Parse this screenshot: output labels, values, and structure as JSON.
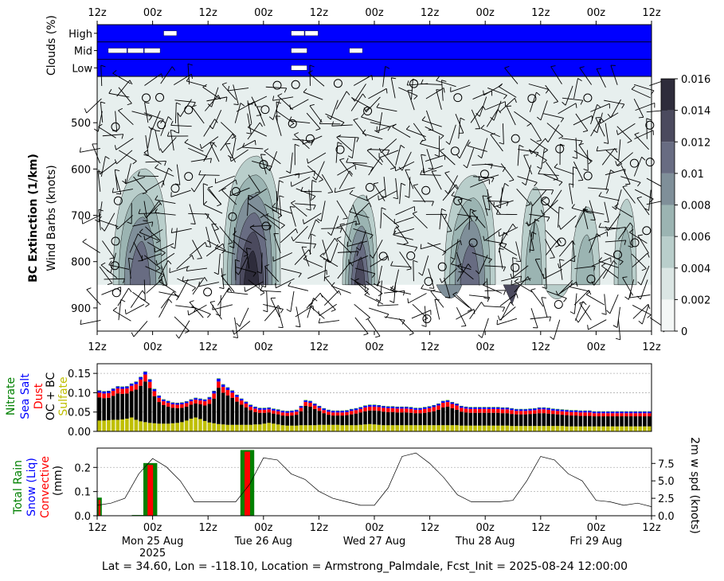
{
  "footer": "Lat = 34.60, Lon = -118.10, Location = Armstrong_Palmdale, Fcst_Init = 2025-08-24 12:00:00",
  "time_ticks": [
    "12z",
    "00z",
    "12z",
    "00z",
    "12z",
    "00z",
    "12z",
    "00z",
    "12z",
    "00z",
    "12z"
  ],
  "day_labels": [
    "Mon 25 Aug",
    "Tue 26 Aug",
    "Wed 27 Aug",
    "Thu 28 Aug",
    "Fri 29 Aug"
  ],
  "year_label": "2025",
  "clouds": {
    "ylabel": "Clouds (%)",
    "rows": [
      "High",
      "Mid",
      "Low"
    ],
    "fill_color": "#0000ff",
    "segments_high": [
      [
        1.2,
        1.45
      ],
      [
        3.5,
        3.75
      ],
      [
        3.75,
        4.0
      ]
    ],
    "segments_mid": [
      [
        0.2,
        0.55
      ],
      [
        0.55,
        0.85
      ],
      [
        0.85,
        1.15
      ],
      [
        3.5,
        3.8
      ],
      [
        4.55,
        4.8
      ]
    ],
    "segments_low": [
      [
        3.5,
        3.8
      ]
    ]
  },
  "main": {
    "ylabel_bold": "BC Extinction (1/km)",
    "ylabel": "Wind Barbs (knots)",
    "y_ticks": [
      "500",
      "600",
      "700",
      "800",
      "900"
    ],
    "ylim": [
      950,
      400
    ],
    "colorbar_ticks": [
      "0",
      "0.002",
      "0.004",
      "0.006",
      "0.008",
      "0.01",
      "0.012",
      "0.014",
      "0.016"
    ],
    "colorbar_colors": [
      "#f4f7f6",
      "#dbe6e4",
      "#b9cecb",
      "#9bb4b2",
      "#7f8f99",
      "#686c82",
      "#4b4a5e",
      "#2e2c3b",
      "#141414"
    ],
    "background_color": "#e7efee"
  },
  "chart_data": [
    {
      "type": "bar",
      "stacked": true,
      "ylabels": [
        "Nitrate",
        "Sea Salt",
        "Dust",
        "OC + BC",
        "Sulfate"
      ],
      "ylabel_colors": [
        "#008000",
        "#0000ff",
        "#ff0000",
        "#000000",
        "#bfbf00"
      ],
      "y_ticks": [
        "0.00",
        "0.05",
        "0.10",
        "0.15"
      ],
      "ylim": [
        0,
        0.175
      ],
      "grid": true,
      "x_hours_step": 3,
      "series": [
        {
          "name": "Sulfate",
          "color": "#bfbf00",
          "values": [
            0.028,
            0.028,
            0.029,
            0.03,
            0.03,
            0.031,
            0.033,
            0.036,
            0.03,
            0.026,
            0.024,
            0.022,
            0.021,
            0.02,
            0.02,
            0.02,
            0.021,
            0.022,
            0.024,
            0.028,
            0.033,
            0.036,
            0.032,
            0.027,
            0.023,
            0.021,
            0.019,
            0.018,
            0.017,
            0.017,
            0.017,
            0.017,
            0.017,
            0.017,
            0.018,
            0.018,
            0.02,
            0.022,
            0.02,
            0.018,
            0.016,
            0.015,
            0.015,
            0.015,
            0.016,
            0.016,
            0.016,
            0.016,
            0.017,
            0.017,
            0.017,
            0.017,
            0.017,
            0.016,
            0.016,
            0.016,
            0.016,
            0.017,
            0.018,
            0.019,
            0.018,
            0.017,
            0.016,
            0.016,
            0.016,
            0.016,
            0.016,
            0.016,
            0.016,
            0.016,
            0.016,
            0.016,
            0.016,
            0.016,
            0.016,
            0.016,
            0.016,
            0.016,
            0.016,
            0.015,
            0.015,
            0.015,
            0.015,
            0.015,
            0.015,
            0.015,
            0.015,
            0.015,
            0.015,
            0.015,
            0.014,
            0.014,
            0.014,
            0.014,
            0.014,
            0.014,
            0.014,
            0.014,
            0.014,
            0.014,
            0.014,
            0.014,
            0.013,
            0.013,
            0.013,
            0.013,
            0.013,
            0.013,
            0.013,
            0.013,
            0.013,
            0.013,
            0.013,
            0.013,
            0.013,
            0.013,
            0.013,
            0.013,
            0.013,
            0.013,
            0.013
          ]
        },
        {
          "name": "OC + BC",
          "color": "#000000",
          "values": [
            0.06,
            0.058,
            0.058,
            0.062,
            0.068,
            0.066,
            0.065,
            0.068,
            0.078,
            0.092,
            0.105,
            0.09,
            0.07,
            0.056,
            0.048,
            0.044,
            0.04,
            0.038,
            0.037,
            0.036,
            0.036,
            0.036,
            0.038,
            0.04,
            0.048,
            0.064,
            0.094,
            0.082,
            0.076,
            0.07,
            0.06,
            0.052,
            0.045,
            0.038,
            0.032,
            0.03,
            0.028,
            0.027,
            0.026,
            0.026,
            0.025,
            0.025,
            0.026,
            0.028,
            0.036,
            0.05,
            0.048,
            0.042,
            0.036,
            0.03,
            0.026,
            0.024,
            0.024,
            0.025,
            0.026,
            0.028,
            0.03,
            0.032,
            0.034,
            0.035,
            0.036,
            0.036,
            0.035,
            0.034,
            0.034,
            0.033,
            0.033,
            0.033,
            0.032,
            0.031,
            0.031,
            0.032,
            0.034,
            0.036,
            0.04,
            0.046,
            0.048,
            0.044,
            0.04,
            0.036,
            0.034,
            0.033,
            0.033,
            0.033,
            0.033,
            0.033,
            0.033,
            0.033,
            0.032,
            0.032,
            0.031,
            0.03,
            0.03,
            0.03,
            0.031,
            0.032,
            0.033,
            0.033,
            0.032,
            0.031,
            0.03,
            0.029,
            0.029,
            0.028,
            0.028,
            0.027,
            0.027,
            0.027,
            0.026,
            0.026,
            0.026,
            0.026,
            0.026,
            0.026,
            0.026,
            0.026,
            0.026,
            0.026,
            0.026,
            0.026,
            0.026
          ]
        },
        {
          "name": "Dust",
          "color": "#ff0000",
          "values": [
            0.012,
            0.012,
            0.012,
            0.013,
            0.013,
            0.013,
            0.013,
            0.014,
            0.014,
            0.016,
            0.018,
            0.016,
            0.013,
            0.011,
            0.01,
            0.01,
            0.009,
            0.009,
            0.009,
            0.009,
            0.009,
            0.01,
            0.01,
            0.011,
            0.012,
            0.013,
            0.016,
            0.015,
            0.014,
            0.013,
            0.012,
            0.011,
            0.01,
            0.009,
            0.009,
            0.008,
            0.008,
            0.008,
            0.008,
            0.008,
            0.008,
            0.008,
            0.008,
            0.008,
            0.009,
            0.01,
            0.01,
            0.009,
            0.008,
            0.008,
            0.008,
            0.008,
            0.008,
            0.008,
            0.008,
            0.009,
            0.009,
            0.009,
            0.01,
            0.01,
            0.01,
            0.01,
            0.01,
            0.01,
            0.01,
            0.01,
            0.01,
            0.01,
            0.01,
            0.009,
            0.009,
            0.01,
            0.01,
            0.011,
            0.011,
            0.012,
            0.012,
            0.011,
            0.011,
            0.01,
            0.01,
            0.01,
            0.01,
            0.01,
            0.01,
            0.01,
            0.01,
            0.01,
            0.01,
            0.01,
            0.01,
            0.009,
            0.009,
            0.009,
            0.009,
            0.009,
            0.01,
            0.01,
            0.01,
            0.009,
            0.009,
            0.009,
            0.009,
            0.009,
            0.009,
            0.009,
            0.009,
            0.009,
            0.008,
            0.008,
            0.008,
            0.008,
            0.008,
            0.008,
            0.008,
            0.008,
            0.008,
            0.008,
            0.008,
            0.008,
            0.008
          ]
        },
        {
          "name": "Sea Salt",
          "color": "#0000ff",
          "values": [
            0.005,
            0.005,
            0.005,
            0.005,
            0.005,
            0.005,
            0.005,
            0.005,
            0.006,
            0.006,
            0.007,
            0.006,
            0.005,
            0.005,
            0.004,
            0.004,
            0.004,
            0.004,
            0.004,
            0.004,
            0.004,
            0.004,
            0.004,
            0.004,
            0.005,
            0.006,
            0.007,
            0.006,
            0.006,
            0.005,
            0.005,
            0.004,
            0.004,
            0.004,
            0.004,
            0.004,
            0.004,
            0.004,
            0.004,
            0.004,
            0.004,
            0.004,
            0.004,
            0.004,
            0.004,
            0.004,
            0.004,
            0.004,
            0.004,
            0.004,
            0.004,
            0.004,
            0.004,
            0.004,
            0.004,
            0.004,
            0.004,
            0.004,
            0.004,
            0.004,
            0.004,
            0.004,
            0.004,
            0.004,
            0.004,
            0.004,
            0.004,
            0.004,
            0.004,
            0.004,
            0.004,
            0.004,
            0.004,
            0.004,
            0.004,
            0.004,
            0.004,
            0.004,
            0.004,
            0.004,
            0.004,
            0.004,
            0.004,
            0.004,
            0.004,
            0.004,
            0.004,
            0.004,
            0.004,
            0.004,
            0.004,
            0.004,
            0.004,
            0.004,
            0.004,
            0.004,
            0.004,
            0.004,
            0.004,
            0.004,
            0.004,
            0.004,
            0.004,
            0.004,
            0.004,
            0.004,
            0.004,
            0.004,
            0.004,
            0.004,
            0.004,
            0.004,
            0.004,
            0.004,
            0.004,
            0.004,
            0.004,
            0.004,
            0.004,
            0.004,
            0.004
          ]
        },
        {
          "name": "Nitrate",
          "color": "#008000",
          "values": [
            0.001,
            0.001,
            0.001,
            0.001,
            0.001,
            0.001,
            0.001,
            0.001,
            0.001,
            0.001,
            0.001,
            0.001,
            0.001,
            0.001,
            0.001,
            0.001,
            0.001,
            0.001,
            0.001,
            0.001,
            0.001,
            0.001,
            0.001,
            0.001,
            0.001,
            0.001,
            0.001,
            0.001,
            0.001,
            0.001,
            0.001,
            0.001,
            0.001,
            0.001,
            0.001,
            0.001,
            0.001,
            0.001,
            0.001,
            0.001,
            0.001,
            0.001,
            0.001,
            0.001,
            0.001,
            0.001,
            0.001,
            0.001,
            0.001,
            0.001,
            0.001,
            0.001,
            0.001,
            0.001,
            0.001,
            0.001,
            0.001,
            0.001,
            0.001,
            0.001,
            0.001,
            0.001,
            0.001,
            0.001,
            0.001,
            0.001,
            0.001,
            0.001,
            0.001,
            0.001,
            0.001,
            0.001,
            0.001,
            0.001,
            0.001,
            0.001,
            0.001,
            0.001,
            0.001,
            0.001,
            0.001,
            0.001,
            0.001,
            0.001,
            0.001,
            0.001,
            0.001,
            0.001,
            0.001,
            0.001,
            0.001,
            0.001,
            0.001,
            0.001,
            0.001,
            0.001,
            0.001,
            0.001,
            0.001,
            0.001,
            0.001,
            0.001,
            0.001,
            0.001,
            0.001,
            0.001,
            0.001,
            0.001,
            0.001,
            0.001,
            0.001,
            0.001,
            0.001,
            0.001,
            0.001,
            0.001,
            0.001,
            0.001,
            0.001,
            0.001,
            0.001
          ]
        }
      ]
    },
    {
      "type": "bar",
      "ylabels": [
        "Total Rain",
        "Snow (Liq)",
        "Convective",
        "(mm)"
      ],
      "ylabel_colors": [
        "#008000",
        "#0000ff",
        "#ff0000",
        "#000000"
      ],
      "y_ticks": [
        "0.0",
        "0.1",
        "0.2"
      ],
      "ylim": [
        0,
        0.28
      ],
      "grid": true,
      "bars": [
        {
          "start_hour": 0,
          "end_hour": 1,
          "total": 0.075,
          "convective": 0.065
        },
        {
          "start_hour": 7.5,
          "end_hour": 10,
          "total": 0.003,
          "convective": 0.0
        },
        {
          "start_hour": 10,
          "end_hour": 13,
          "total": 0.218,
          "convective": 0.21
        },
        {
          "start_hour": 31,
          "end_hour": 34,
          "total": 0.272,
          "convective": 0.265
        }
      ],
      "y2label": "2m w spd (knots)",
      "y2_ticks": [
        "0.0",
        "2.5",
        "5.0",
        "7.5"
      ],
      "y2lim": [
        0,
        9.7
      ],
      "wind_speed_hours": [
        0,
        3,
        6,
        9,
        12,
        15,
        18,
        21,
        24,
        27,
        30,
        33,
        36,
        39,
        42,
        45,
        48,
        51,
        54,
        57,
        60,
        63,
        66,
        69,
        72,
        75,
        78,
        81,
        84,
        87,
        90,
        93,
        96,
        99,
        102,
        105,
        108,
        111,
        114,
        117,
        120
      ],
      "wind_speed_knots": [
        1.5,
        1.8,
        2.5,
        6.0,
        8.2,
        7.0,
        5.0,
        2.0,
        2.0,
        2.0,
        2.0,
        4.5,
        8.3,
        8.0,
        6.0,
        5.2,
        3.5,
        2.5,
        2.0,
        1.5,
        1.5,
        4.0,
        8.5,
        9.0,
        7.5,
        5.5,
        3.0,
        2.0,
        2.0,
        2.0,
        2.2,
        5.0,
        8.5,
        8.0,
        6.0,
        5.0,
        2.2,
        2.0,
        1.5,
        1.8,
        1.3
      ]
    }
  ]
}
